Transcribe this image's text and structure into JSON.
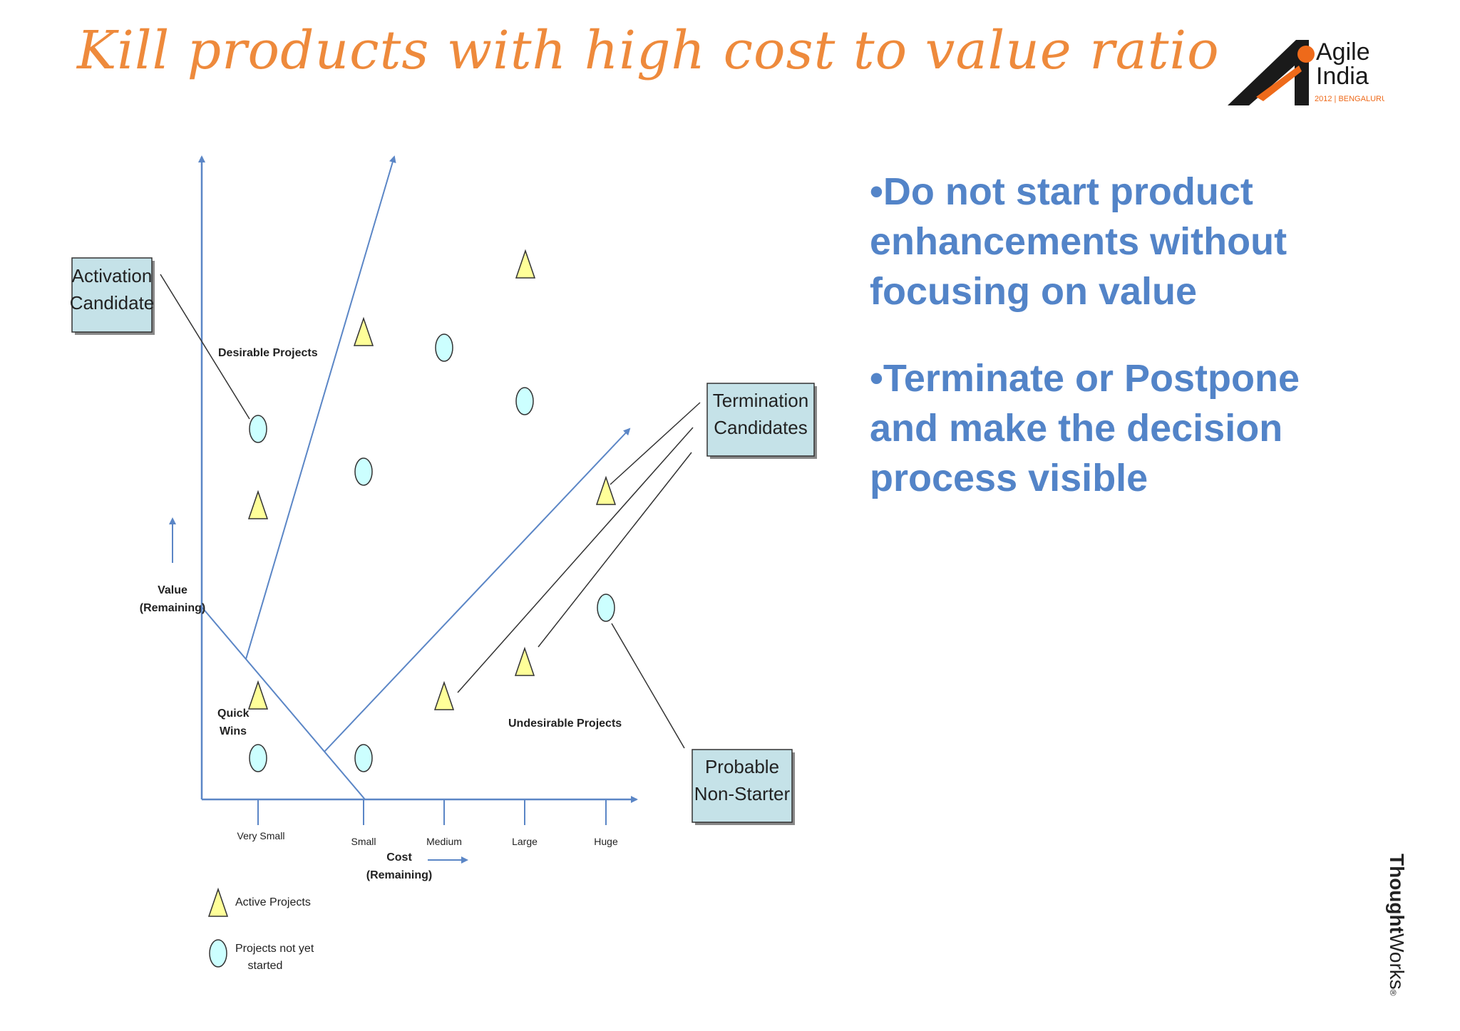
{
  "slide": {
    "title": "Kill products with high cost to value ratio",
    "bullets": [
      "•Do not start product enhancements without focusing on value",
      "•Terminate or Postpone and make the decision process visible"
    ]
  },
  "logo": {
    "line1": "Agile",
    "line2": "India",
    "year_city": "2012 | BENGALURU",
    "colors": {
      "black": "#1a1a1a",
      "orange": "#ee6a1a"
    }
  },
  "footer_logo": {
    "bold": "Thought",
    "regular": "Works",
    "mark": "®"
  },
  "diagram": {
    "colors": {
      "axis": "#5b86c6",
      "triangle_fill": "#ffff99",
      "circle_fill": "#ccffff",
      "box_fill": "#c5e2e8",
      "leader": "#333333"
    },
    "y_axis_label": [
      "Value",
      "(Remaining)"
    ],
    "x_axis_label": [
      "Cost",
      "(Remaining)"
    ],
    "x_ticks": [
      "Very Small",
      "Small",
      "Medium",
      "Large",
      "Huge"
    ],
    "regions": {
      "desirable": "Desirable Projects",
      "undesirable": "Undesirable Projects",
      "quick_wins": [
        "Quick",
        "Wins"
      ]
    },
    "callouts": {
      "activation": [
        "Activation",
        "Candidate"
      ],
      "termination": [
        "Termination",
        "Candidates"
      ],
      "non_starter": [
        "Probable",
        "Non-Starter"
      ]
    },
    "legend": {
      "active": "Active Projects",
      "not_started": [
        "Projects not yet",
        "started"
      ]
    }
  }
}
